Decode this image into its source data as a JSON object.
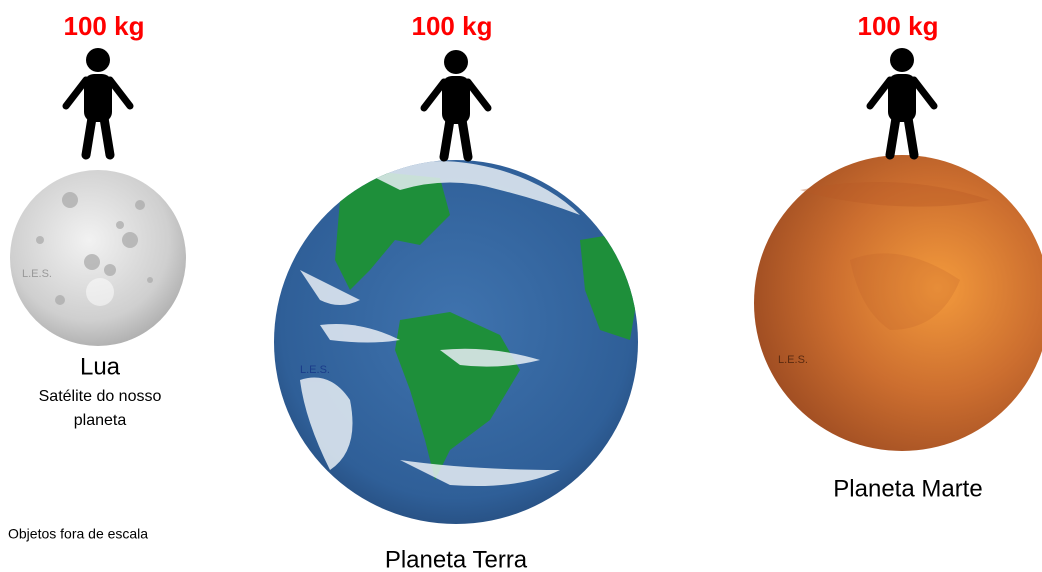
{
  "bodies": [
    {
      "weight": "100 kg",
      "name": "Lua",
      "subtitle": [
        "Satélite do nosso",
        "planeta"
      ],
      "watermark": "L.E.S."
    },
    {
      "weight": "100 kg",
      "name": "Planeta Terra",
      "watermark": "L.E.S."
    },
    {
      "weight": "100 kg",
      "name": "Planeta Marte",
      "watermark": "L.E.S."
    }
  ],
  "note": "Objetos fora de escala"
}
